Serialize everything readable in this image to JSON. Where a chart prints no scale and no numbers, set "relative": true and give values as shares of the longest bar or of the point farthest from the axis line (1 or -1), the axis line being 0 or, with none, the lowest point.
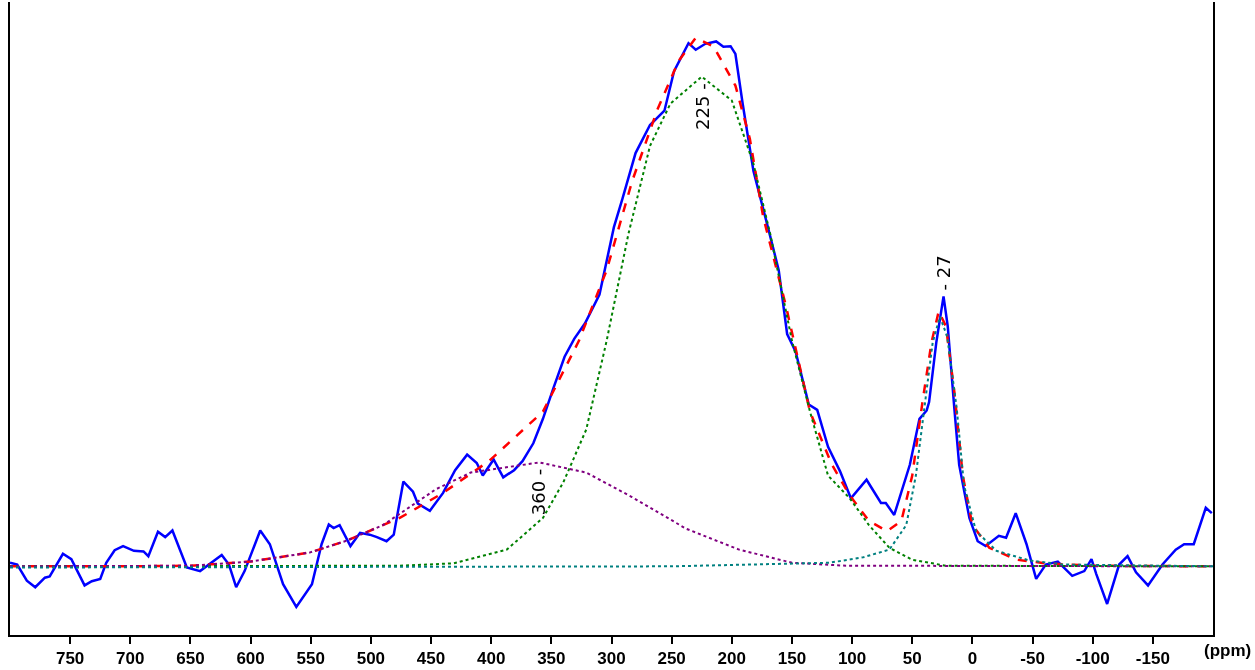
{
  "chart_data": {
    "type": "line",
    "relative": true,
    "xlabel": "(ppm)",
    "xlim": [
      800,
      -200
    ],
    "xticks": [
      750,
      700,
      650,
      600,
      550,
      500,
      450,
      400,
      350,
      300,
      250,
      200,
      150,
      100,
      50,
      0,
      -50,
      -100,
      -150
    ],
    "tick_labels": "x",
    "marker": "none",
    "annotations": [
      {
        "text": "225 -",
        "x": 225,
        "y": 0.935
      },
      {
        "text": "360 -",
        "x": 360,
        "y": 0.289
      },
      {
        "text": "- 27",
        "x": 24,
        "y": 0.567
      }
    ],
    "series": [
      {
        "color": "#0000ff",
        "line_style": "solid",
        "x": [
          800,
          794,
          786,
          779,
          771,
          767,
          756,
          749,
          738,
          732,
          725,
          720,
          713,
          706,
          697,
          689,
          685,
          677,
          671,
          665,
          653,
          642,
          624,
          618,
          612,
          605,
          592,
          584,
          573,
          562,
          549,
          541,
          535,
          531,
          526,
          517,
          509,
          501,
          495,
          487,
          481,
          473,
          465,
          461,
          451,
          440,
          430,
          420,
          412,
          407,
          398,
          390,
          381,
          374,
          365,
          357,
          348,
          339,
          331,
          322,
          310,
          298,
          291,
          280,
          268,
          256,
          248,
          236,
          230,
          222,
          213,
          207,
          201,
          197,
          191,
          182,
          170,
          161,
          154,
          147,
          136,
          129,
          120,
          110,
          101,
          88,
          76,
          72,
          65,
          52,
          44,
          38,
          36,
          30,
          24,
          20.5,
          15,
          11,
          2.5,
          -4.4,
          -11,
          -22,
          -28,
          -36,
          -45,
          -53,
          -61,
          -71,
          -83,
          -93,
          -99,
          -103,
          -112,
          -122,
          -129,
          -136,
          -146,
          -158,
          -169,
          -176,
          -184,
          -194,
          -199
        ],
        "values": [
          0.121,
          0.118,
          0.091,
          0.08,
          0.096,
          0.098,
          0.136,
          0.127,
          0.083,
          0.09,
          0.094,
          0.121,
          0.142,
          0.149,
          0.141,
          0.14,
          0.132,
          0.173,
          0.164,
          0.175,
          0.113,
          0.107,
          0.134,
          0.118,
          0.08,
          0.107,
          0.175,
          0.152,
          0.085,
          0.047,
          0.085,
          0.152,
          0.185,
          0.179,
          0.184,
          0.149,
          0.171,
          0.168,
          0.164,
          0.157,
          0.168,
          0.257,
          0.24,
          0.22,
          0.208,
          0.238,
          0.276,
          0.302,
          0.288,
          0.267,
          0.294,
          0.264,
          0.276,
          0.291,
          0.321,
          0.362,
          0.415,
          0.466,
          0.496,
          0.522,
          0.57,
          0.683,
          0.73,
          0.807,
          0.854,
          0.878,
          0.944,
          0.991,
          0.98,
          0.99,
          0.994,
          0.985,
          0.986,
          0.973,
          0.89,
          0.777,
          0.683,
          0.611,
          0.504,
          0.475,
          0.386,
          0.377,
          0.315,
          0.274,
          0.229,
          0.26,
          0.221,
          0.221,
          0.201,
          0.285,
          0.362,
          0.376,
          0.39,
          0.49,
          0.567,
          0.517,
          0.379,
          0.285,
          0.196,
          0.157,
          0.149,
          0.166,
          0.163,
          0.204,
          0.152,
          0.094,
          0.118,
          0.123,
          0.099,
          0.107,
          0.127,
          0.102,
          0.052,
          0.118,
          0.132,
          0.105,
          0.083,
          0.118,
          0.143,
          0.152,
          0.152,
          0.213,
          0.204
        ]
      },
      {
        "color": "#ff0000",
        "line_style": "dashed",
        "x": [
          800,
          700,
          650,
          600,
          551,
          520,
          490,
          476,
          440,
          402,
          357,
          327,
          304,
          283,
          262,
          244,
          230,
          215,
          197,
          185,
          174,
          155,
          135,
          117,
          102,
          86,
          71,
          59,
          50,
          41.5,
          34,
          28,
          22,
          15,
          8,
          0,
          -14,
          -37,
          -61,
          -100,
          -200
        ],
        "values": [
          0.115,
          0.115,
          0.116,
          0.123,
          0.138,
          0.158,
          0.184,
          0.196,
          0.238,
          0.291,
          0.374,
          0.493,
          0.611,
          0.759,
          0.879,
          0.962,
          1.0,
          0.985,
          0.92,
          0.831,
          0.701,
          0.551,
          0.374,
          0.286,
          0.234,
          0.191,
          0.174,
          0.191,
          0.267,
          0.39,
          0.49,
          0.542,
          0.517,
          0.407,
          0.267,
          0.184,
          0.146,
          0.126,
          0.12,
          0.116,
          0.115
        ]
      },
      {
        "color": "#008000",
        "line_style": "dotted",
        "x": [
          800,
          476,
          431,
          387,
          357,
          340,
          321,
          304,
          286,
          268,
          251,
          225,
          200,
          182,
          168,
          150,
          135,
          120,
          102,
          86,
          69,
          50,
          22,
          -200
        ],
        "values": [
          0.115,
          0.116,
          0.12,
          0.143,
          0.196,
          0.256,
          0.344,
          0.493,
          0.671,
          0.819,
          0.89,
          0.935,
          0.895,
          0.789,
          0.671,
          0.493,
          0.374,
          0.267,
          0.229,
          0.184,
          0.146,
          0.126,
          0.116,
          0.115
        ]
      },
      {
        "color": "#800080",
        "line_style": "dotted",
        "x": [
          800,
          650,
          600,
          551,
          520,
          490,
          476,
          446,
          417,
          360,
          321,
          283,
          238,
          194,
          150,
          105,
          -200
        ],
        "values": [
          0.115,
          0.116,
          0.123,
          0.138,
          0.158,
          0.184,
          0.203,
          0.244,
          0.272,
          0.289,
          0.272,
          0.231,
          0.178,
          0.143,
          0.121,
          0.116,
          0.115
        ]
      },
      {
        "color": "#008080",
        "line_style": "dotted",
        "x": [
          800,
          250,
          119,
          91,
          69,
          55,
          47,
          40,
          33,
          27,
          21,
          13,
          7,
          -3,
          -20,
          -47,
          -75,
          -200
        ],
        "values": [
          0.113,
          0.115,
          0.121,
          0.13,
          0.143,
          0.184,
          0.267,
          0.379,
          0.49,
          0.533,
          0.5,
          0.379,
          0.251,
          0.174,
          0.141,
          0.125,
          0.118,
          0.115
        ]
      }
    ]
  }
}
